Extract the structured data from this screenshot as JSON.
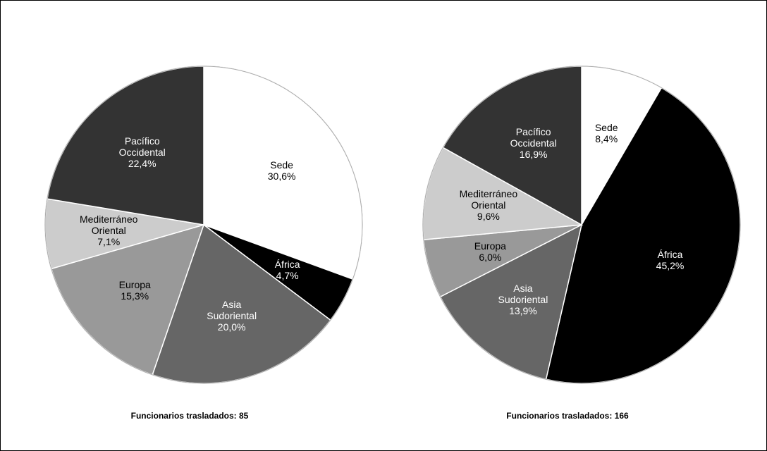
{
  "chart_data": [
    {
      "type": "pie",
      "title": "Funcionarios trasladados: 85",
      "categories": [
        "Sede",
        "África",
        "Asia Sudoriental",
        "Europa",
        "Mediterráneo Oriental",
        "Pacífico Occidental"
      ],
      "values": [
        30.6,
        4.7,
        20.0,
        15.3,
        7.1,
        22.4
      ],
      "value_labels": [
        "30,6%",
        "4,7%",
        "20,0%",
        "15,3%",
        "7,1%",
        "22,4%"
      ],
      "colors": [
        "#ffffff",
        "#000000",
        "#666666",
        "#999999",
        "#cccccc",
        "#333333"
      ]
    },
    {
      "type": "pie",
      "title": "Funcionarios trasladados: 166",
      "categories": [
        "Sede",
        "África",
        "Asia Sudoriental",
        "Europa",
        "Mediterráneo Oriental",
        "Pacífico Occidental"
      ],
      "values": [
        8.4,
        45.2,
        13.9,
        6.0,
        9.6,
        16.9
      ],
      "value_labels": [
        "8,4%",
        "45,2%",
        "13,9%",
        "6,0%",
        "9,6%",
        "16,9%"
      ],
      "colors": [
        "#ffffff",
        "#000000",
        "#666666",
        "#999999",
        "#cccccc",
        "#333333"
      ]
    }
  ]
}
